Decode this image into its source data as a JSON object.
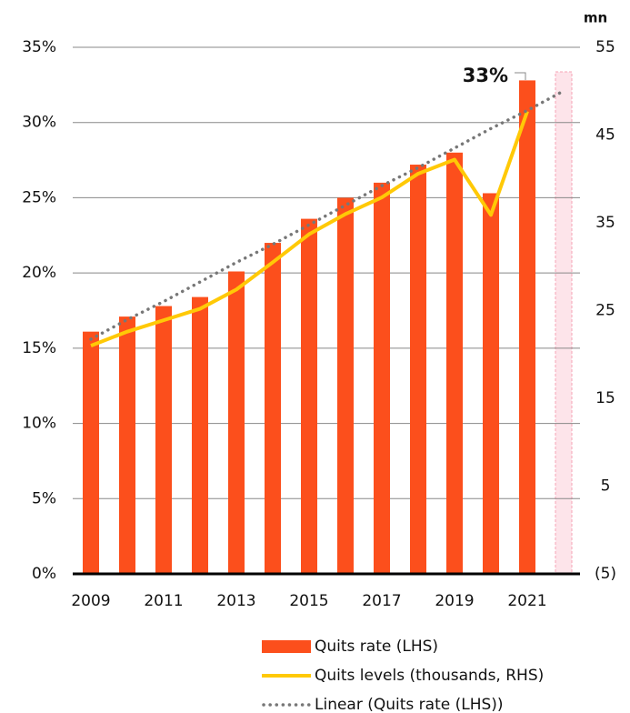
{
  "chart_data": {
    "type": "bar",
    "categories": [
      "2009",
      null,
      "2011",
      null,
      "2013",
      null,
      "2015",
      null,
      "2017",
      null,
      "2019",
      null,
      "2021",
      null
    ],
    "series": [
      {
        "name": "Quits rate (LHS)",
        "type": "bar",
        "axis": "y",
        "color": "#fc4f1c",
        "values": [
          16.1,
          17.1,
          17.8,
          18.4,
          20.1,
          22.0,
          23.6,
          25.0,
          26.0,
          27.2,
          28.0,
          25.3,
          32.8,
          null
        ]
      },
      {
        "name": "Quits levels (thousands, RHS)",
        "type": "line",
        "axis": "y2",
        "color": "#ffc906",
        "style": "solid",
        "values": [
          21.0,
          22.6,
          23.9,
          25.2,
          27.4,
          30.5,
          33.7,
          36.0,
          37.9,
          40.6,
          42.2,
          35.9,
          47.7,
          null
        ]
      },
      {
        "name": "Linear (Quits rate (LHS))",
        "type": "line",
        "axis": "y",
        "color": "#777777",
        "style": "dotted",
        "values": [
          15.6,
          16.9,
          18.1,
          19.4,
          20.7,
          21.9,
          23.2,
          24.5,
          25.8,
          27.0,
          28.3,
          29.6,
          30.8,
          32.1
        ]
      }
    ],
    "ylim": [
      0,
      35
    ],
    "yticks": [
      {
        "value": 0,
        "label": "0%"
      },
      {
        "value": 5,
        "label": "5%"
      },
      {
        "value": 10,
        "label": "10%"
      },
      {
        "value": 15,
        "label": "15%"
      },
      {
        "value": 20,
        "label": "20%"
      },
      {
        "value": 25,
        "label": "25%"
      },
      {
        "value": 30,
        "label": "30%"
      },
      {
        "value": 35,
        "label": "35%"
      }
    ],
    "y2lim": [
      -5,
      55
    ],
    "y2ticks": [
      {
        "value": -5,
        "label": "(5)"
      },
      5,
      15,
      25,
      35,
      45,
      55
    ],
    "y2label": "mn",
    "annotation": "33%",
    "grid": true,
    "legend": "bottom"
  }
}
